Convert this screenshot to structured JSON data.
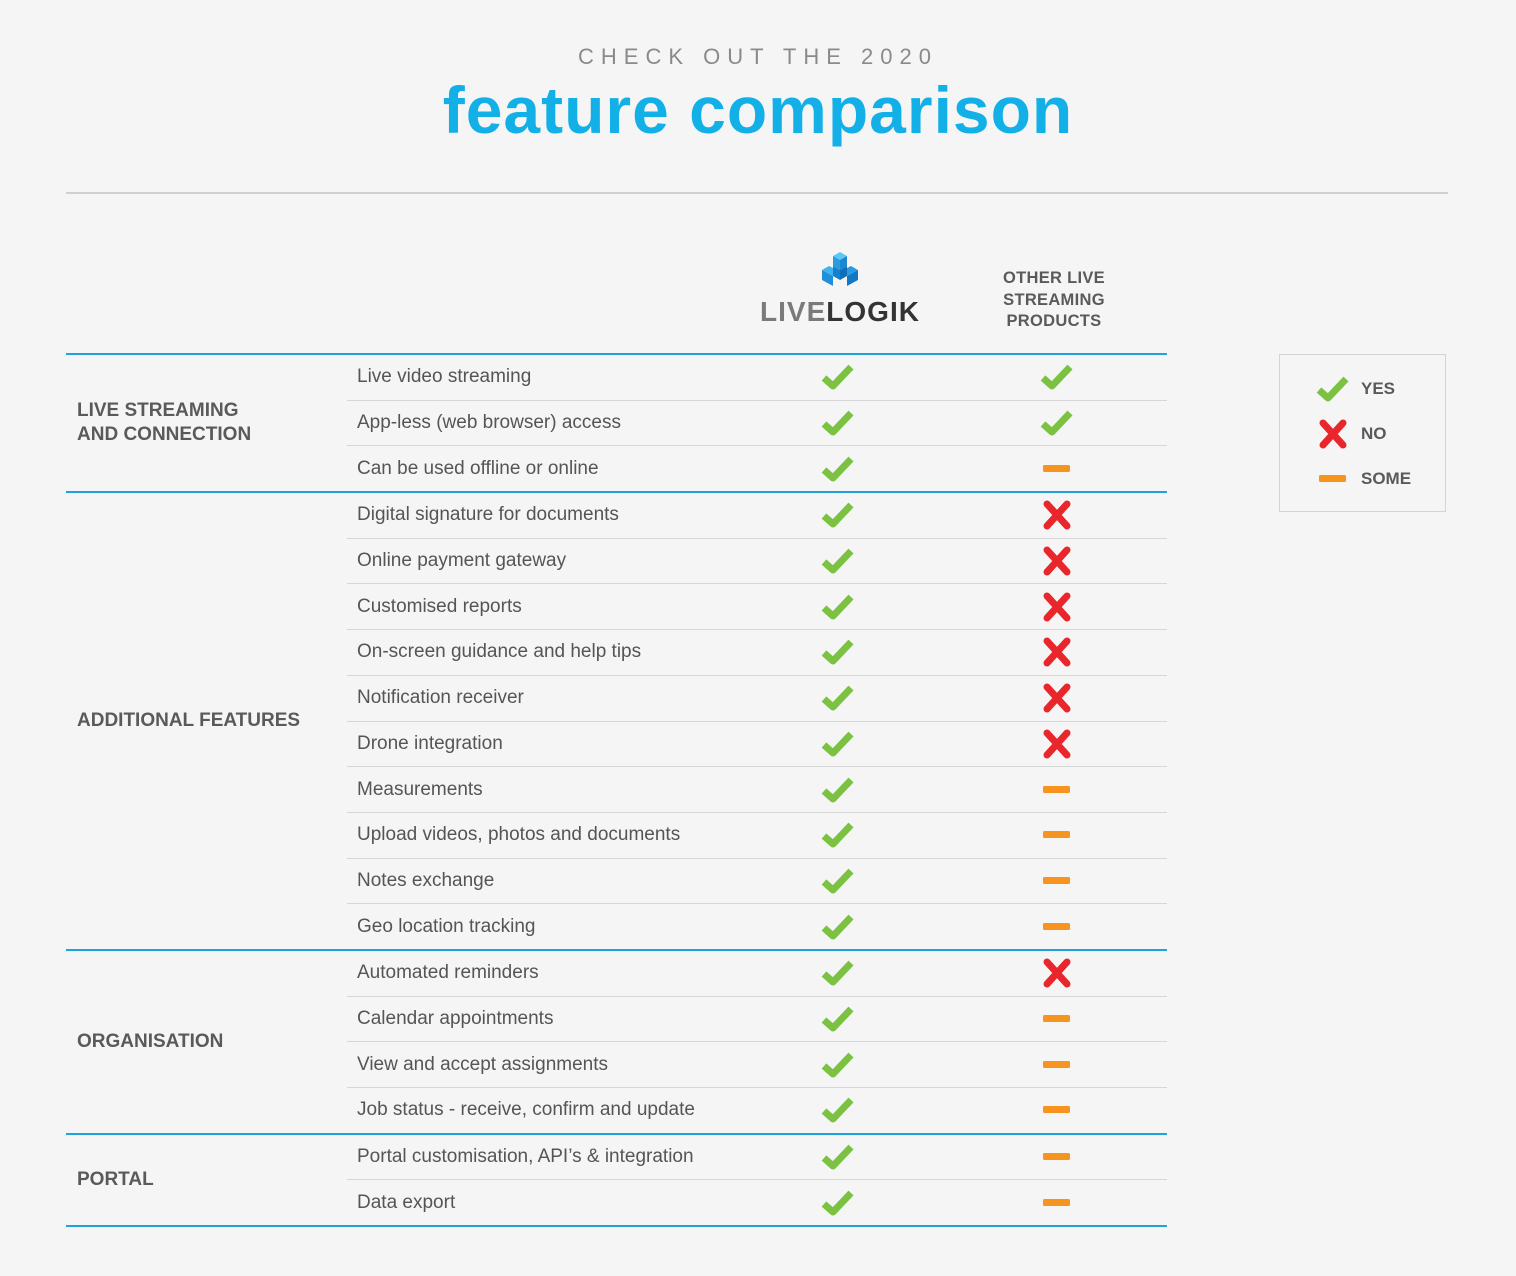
{
  "header": {
    "kicker": "CHECK OUT THE 2020",
    "title": "feature comparison"
  },
  "columns": {
    "brand_live": "LIVE",
    "brand_logik": "LOGIK",
    "other_line1": "OTHER LIVE",
    "other_line2": "STREAMING",
    "other_line3": "PRODUCTS"
  },
  "colors": {
    "accent": "#13b0e8",
    "rule": "#1fa3dc",
    "yes": "#7cc242",
    "no": "#e8262b",
    "some": "#f7941d"
  },
  "legend": {
    "yes": "YES",
    "no": "NO",
    "some": "SOME"
  },
  "groups": [
    {
      "label_line1": "LIVE STREAMING",
      "label_line2": "AND CONNECTION",
      "rows": [
        {
          "feature": "Live video streaming",
          "livelogik": "yes",
          "other": "yes"
        },
        {
          "feature": "App-less (web browser) access",
          "livelogik": "yes",
          "other": "yes"
        },
        {
          "feature": "Can be used offline or online",
          "livelogik": "yes",
          "other": "some"
        }
      ]
    },
    {
      "label_line1": "ADDITIONAL FEATURES",
      "label_line2": "",
      "rows": [
        {
          "feature": "Digital signature for documents",
          "livelogik": "yes",
          "other": "no"
        },
        {
          "feature": "Online payment gateway",
          "livelogik": "yes",
          "other": "no"
        },
        {
          "feature": "Customised reports",
          "livelogik": "yes",
          "other": "no"
        },
        {
          "feature": "On-screen guidance and help tips",
          "livelogik": "yes",
          "other": "no"
        },
        {
          "feature": "Notification receiver",
          "livelogik": "yes",
          "other": "no"
        },
        {
          "feature": "Drone integration",
          "livelogik": "yes",
          "other": "no"
        },
        {
          "feature": "Measurements",
          "livelogik": "yes",
          "other": "some"
        },
        {
          "feature": "Upload videos, photos and documents",
          "livelogik": "yes",
          "other": "some"
        },
        {
          "feature": "Notes exchange",
          "livelogik": "yes",
          "other": "some"
        },
        {
          "feature": "Geo location tracking",
          "livelogik": "yes",
          "other": "some"
        }
      ]
    },
    {
      "label_line1": "ORGANISATION",
      "label_line2": "",
      "rows": [
        {
          "feature": "Automated reminders",
          "livelogik": "yes",
          "other": "no"
        },
        {
          "feature": "Calendar appointments",
          "livelogik": "yes",
          "other": "some"
        },
        {
          "feature": "View and accept assignments",
          "livelogik": "yes",
          "other": "some"
        },
        {
          "feature": "Job status - receive, confirm and update",
          "livelogik": "yes",
          "other": "some"
        }
      ]
    },
    {
      "label_line1": "PORTAL",
      "label_line2": "",
      "rows": [
        {
          "feature": "Portal customisation, API’s & integration",
          "livelogik": "yes",
          "other": "some"
        },
        {
          "feature": "Data export",
          "livelogik": "yes",
          "other": "some"
        }
      ]
    }
  ]
}
